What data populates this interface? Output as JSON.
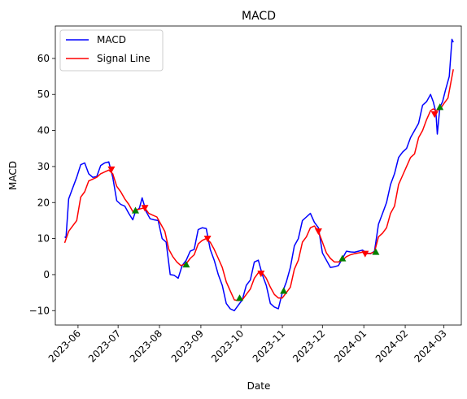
{
  "chart_data": {
    "type": "line",
    "title": "MACD",
    "xlabel": "Date",
    "ylabel": "MACD",
    "xlim": [
      "2023-05-15",
      "2024-03-14"
    ],
    "ylim": [
      -14,
      69
    ],
    "x_ticks": [
      "2023-06-01",
      "2023-07-01",
      "2023-08-01",
      "2023-09-01",
      "2023-10-01",
      "2023-11-01",
      "2023-12-01",
      "2024-01-01",
      "2024-02-01",
      "2024-03-01"
    ],
    "x_tick_labels": [
      "2023-06",
      "2023-07",
      "2023-08",
      "2023-09",
      "2023-10",
      "2023-11",
      "2023-12",
      "2024-01",
      "2024-02",
      "2024-03"
    ],
    "y_ticks": [
      -10,
      0,
      10,
      20,
      30,
      40,
      50,
      60
    ],
    "y_tick_labels": [
      "−10",
      "0",
      "10",
      "20",
      "30",
      "40",
      "50",
      "60"
    ],
    "grid": false,
    "legend_position": "top-left",
    "legend": [
      "MACD",
      "Signal Line"
    ],
    "series": [
      {
        "name": "MACD",
        "color": "#0000ff",
        "points": [
          [
            "2023-05-22",
            10.5
          ],
          [
            "2023-05-23",
            10.2
          ],
          [
            "2023-05-25",
            21
          ],
          [
            "2023-05-28",
            24
          ],
          [
            "2023-05-31",
            27
          ],
          [
            "2023-06-03",
            30.5
          ],
          [
            "2023-06-06",
            31
          ],
          [
            "2023-06-09",
            28
          ],
          [
            "2023-06-12",
            27
          ],
          [
            "2023-06-15",
            27.2
          ],
          [
            "2023-06-18",
            30.3
          ],
          [
            "2023-06-21",
            31
          ],
          [
            "2023-06-24",
            31.3
          ],
          [
            "2023-06-27",
            27
          ],
          [
            "2023-06-30",
            20.5
          ],
          [
            "2023-07-03",
            19.5
          ],
          [
            "2023-07-06",
            19
          ],
          [
            "2023-07-09",
            17
          ],
          [
            "2023-07-12",
            15.2
          ],
          [
            "2023-07-14",
            17.5
          ],
          [
            "2023-07-17",
            18.5
          ],
          [
            "2023-07-19",
            21.3
          ],
          [
            "2023-07-22",
            17.5
          ],
          [
            "2023-07-25",
            15.5
          ],
          [
            "2023-07-28",
            15.2
          ],
          [
            "2023-07-31",
            15
          ],
          [
            "2023-08-03",
            10
          ],
          [
            "2023-08-06",
            9
          ],
          [
            "2023-08-09",
            0
          ],
          [
            "2023-08-12",
            -0.2
          ],
          [
            "2023-08-15",
            -1
          ],
          [
            "2023-08-18",
            2.5
          ],
          [
            "2023-08-21",
            4
          ],
          [
            "2023-08-24",
            6.5
          ],
          [
            "2023-08-27",
            7
          ],
          [
            "2023-08-30",
            12.5
          ],
          [
            "2023-09-02",
            13
          ],
          [
            "2023-09-05",
            12.8
          ],
          [
            "2023-09-08",
            7
          ],
          [
            "2023-09-11",
            4
          ],
          [
            "2023-09-14",
            0
          ],
          [
            "2023-09-17",
            -3
          ],
          [
            "2023-09-20",
            -8
          ],
          [
            "2023-09-23",
            -9.5
          ],
          [
            "2023-09-26",
            -10
          ],
          [
            "2023-09-29",
            -8.5
          ],
          [
            "2023-10-02",
            -7
          ],
          [
            "2023-10-05",
            -3
          ],
          [
            "2023-10-08",
            -1.5
          ],
          [
            "2023-10-11",
            3.5
          ],
          [
            "2023-10-14",
            4
          ],
          [
            "2023-10-17",
            0
          ],
          [
            "2023-10-20",
            -3
          ],
          [
            "2023-10-23",
            -8
          ],
          [
            "2023-10-26",
            -9
          ],
          [
            "2023-10-29",
            -9.5
          ],
          [
            "2023-11-01",
            -5
          ],
          [
            "2023-11-04",
            -2
          ],
          [
            "2023-11-07",
            2
          ],
          [
            "2023-11-10",
            8
          ],
          [
            "2023-11-13",
            10
          ],
          [
            "2023-11-16",
            15
          ],
          [
            "2023-11-19",
            16
          ],
          [
            "2023-11-22",
            17
          ],
          [
            "2023-11-25",
            14.5
          ],
          [
            "2023-11-28",
            13
          ],
          [
            "2023-12-01",
            6
          ],
          [
            "2023-12-04",
            4
          ],
          [
            "2023-12-07",
            2
          ],
          [
            "2023-12-10",
            2.2
          ],
          [
            "2023-12-13",
            2.5
          ],
          [
            "2023-12-16",
            4.5
          ],
          [
            "2023-12-19",
            6.5
          ],
          [
            "2023-12-22",
            6.3
          ],
          [
            "2023-12-25",
            6.2
          ],
          [
            "2023-12-28",
            6.5
          ],
          [
            "2023-12-31",
            6.8
          ],
          [
            "2024-01-03",
            6
          ],
          [
            "2024-01-06",
            5.8
          ],
          [
            "2024-01-09",
            6.5
          ],
          [
            "2024-01-12",
            14
          ],
          [
            "2024-01-15",
            17
          ],
          [
            "2024-01-18",
            20
          ],
          [
            "2024-01-21",
            25
          ],
          [
            "2024-01-24",
            28
          ],
          [
            "2024-01-27",
            32.5
          ],
          [
            "2024-01-30",
            34
          ],
          [
            "2024-02-02",
            35
          ],
          [
            "2024-02-05",
            38
          ],
          [
            "2024-02-08",
            40
          ],
          [
            "2024-02-11",
            42
          ],
          [
            "2024-02-14",
            47
          ],
          [
            "2024-02-17",
            48
          ],
          [
            "2024-02-20",
            50
          ],
          [
            "2024-02-22",
            48
          ],
          [
            "2024-02-24",
            45
          ],
          [
            "2024-02-25",
            39
          ],
          [
            "2024-02-27",
            46.5
          ],
          [
            "2024-02-29",
            48
          ],
          [
            "2024-03-02",
            51
          ],
          [
            "2024-03-05",
            55
          ],
          [
            "2024-03-07",
            65.3
          ],
          [
            "2024-03-08",
            64.5
          ]
        ]
      },
      {
        "name": "Signal Line",
        "color": "#ff0000",
        "points": [
          [
            "2023-05-22",
            8.8
          ],
          [
            "2023-05-25",
            12
          ],
          [
            "2023-05-28",
            13.5
          ],
          [
            "2023-05-31",
            15
          ],
          [
            "2023-06-03",
            21.5
          ],
          [
            "2023-06-06",
            23
          ],
          [
            "2023-06-09",
            26
          ],
          [
            "2023-06-12",
            26.5
          ],
          [
            "2023-06-15",
            27
          ],
          [
            "2023-06-18",
            28
          ],
          [
            "2023-06-21",
            28.5
          ],
          [
            "2023-06-24",
            29
          ],
          [
            "2023-06-27",
            28
          ],
          [
            "2023-06-30",
            24.5
          ],
          [
            "2023-07-03",
            23
          ],
          [
            "2023-07-06",
            21
          ],
          [
            "2023-07-09",
            19.5
          ],
          [
            "2023-07-12",
            17.5
          ],
          [
            "2023-07-15",
            18
          ],
          [
            "2023-07-18",
            18.3
          ],
          [
            "2023-07-21",
            18.5
          ],
          [
            "2023-07-24",
            17
          ],
          [
            "2023-07-27",
            16.5
          ],
          [
            "2023-07-30",
            16
          ],
          [
            "2023-08-02",
            14
          ],
          [
            "2023-08-05",
            12
          ],
          [
            "2023-08-08",
            7
          ],
          [
            "2023-08-11",
            5
          ],
          [
            "2023-08-14",
            3.5
          ],
          [
            "2023-08-17",
            2.5
          ],
          [
            "2023-08-21",
            3
          ],
          [
            "2023-08-24",
            4.5
          ],
          [
            "2023-08-27",
            5.5
          ],
          [
            "2023-08-30",
            8.5
          ],
          [
            "2023-09-02",
            9.5
          ],
          [
            "2023-09-05",
            10
          ],
          [
            "2023-09-08",
            9
          ],
          [
            "2023-09-11",
            7
          ],
          [
            "2023-09-14",
            4.5
          ],
          [
            "2023-09-17",
            2
          ],
          [
            "2023-09-20",
            -2
          ],
          [
            "2023-09-23",
            -4.5
          ],
          [
            "2023-09-26",
            -7
          ],
          [
            "2023-09-29",
            -7.2
          ],
          [
            "2023-10-02",
            -7
          ],
          [
            "2023-10-05",
            -5.5
          ],
          [
            "2023-10-08",
            -4
          ],
          [
            "2023-10-11",
            -1
          ],
          [
            "2023-10-14",
            0.5
          ],
          [
            "2023-10-17",
            0.5
          ],
          [
            "2023-10-20",
            -1
          ],
          [
            "2023-10-23",
            -3.5
          ],
          [
            "2023-10-26",
            -5.5
          ],
          [
            "2023-10-29",
            -6.5
          ],
          [
            "2023-11-01",
            -6.5
          ],
          [
            "2023-11-04",
            -5
          ],
          [
            "2023-11-07",
            -3.5
          ],
          [
            "2023-11-10",
            1.5
          ],
          [
            "2023-11-13",
            4
          ],
          [
            "2023-11-16",
            9
          ],
          [
            "2023-11-19",
            10.5
          ],
          [
            "2023-11-22",
            13
          ],
          [
            "2023-11-25",
            13.5
          ],
          [
            "2023-11-28",
            12
          ],
          [
            "2023-12-01",
            9
          ],
          [
            "2023-12-04",
            6
          ],
          [
            "2023-12-07",
            4.5
          ],
          [
            "2023-12-10",
            3.5
          ],
          [
            "2023-12-13",
            3.5
          ],
          [
            "2023-12-16",
            4
          ],
          [
            "2023-12-19",
            5
          ],
          [
            "2023-12-22",
            5.5
          ],
          [
            "2023-12-25",
            5.8
          ],
          [
            "2023-12-28",
            6
          ],
          [
            "2023-12-31",
            6.2
          ],
          [
            "2024-01-03",
            5.8
          ],
          [
            "2024-01-06",
            5.9
          ],
          [
            "2024-01-09",
            6.3
          ],
          [
            "2024-01-12",
            10.5
          ],
          [
            "2024-01-15",
            11.5
          ],
          [
            "2024-01-18",
            13
          ],
          [
            "2024-01-21",
            17
          ],
          [
            "2024-01-24",
            19
          ],
          [
            "2024-01-27",
            25
          ],
          [
            "2024-01-30",
            27.5
          ],
          [
            "2024-02-02",
            30
          ],
          [
            "2024-02-05",
            32.5
          ],
          [
            "2024-02-08",
            33.5
          ],
          [
            "2024-02-11",
            38
          ],
          [
            "2024-02-14",
            40
          ],
          [
            "2024-02-17",
            43
          ],
          [
            "2024-02-20",
            45.5
          ],
          [
            "2024-02-22",
            46
          ],
          [
            "2024-02-24",
            45.5
          ],
          [
            "2024-02-27",
            45.8
          ],
          [
            "2024-03-01",
            47.5
          ],
          [
            "2024-03-04",
            49
          ],
          [
            "2024-03-06",
            53
          ],
          [
            "2024-03-08",
            57
          ]
        ]
      }
    ],
    "markers": [
      {
        "x": "2023-06-26",
        "y": 29.2,
        "kind": "sell",
        "color": "#ff0000"
      },
      {
        "x": "2023-07-14",
        "y": 17.8,
        "kind": "buy",
        "color": "#008000"
      },
      {
        "x": "2023-07-21",
        "y": 18.5,
        "kind": "sell",
        "color": "#ff0000"
      },
      {
        "x": "2023-08-21",
        "y": 2.8,
        "kind": "buy",
        "color": "#008000"
      },
      {
        "x": "2023-09-06",
        "y": 10,
        "kind": "sell",
        "color": "#ff0000"
      },
      {
        "x": "2023-09-30",
        "y": -6.5,
        "kind": "buy",
        "color": "#008000"
      },
      {
        "x": "2023-10-16",
        "y": 0.3,
        "kind": "sell",
        "color": "#ff0000"
      },
      {
        "x": "2023-11-02",
        "y": -4.5,
        "kind": "buy",
        "color": "#008000"
      },
      {
        "x": "2023-11-28",
        "y": 12,
        "kind": "sell",
        "color": "#ff0000"
      },
      {
        "x": "2023-12-16",
        "y": 4.5,
        "kind": "buy",
        "color": "#008000"
      },
      {
        "x": "2024-01-02",
        "y": 5.8,
        "kind": "sell",
        "color": "#ff0000"
      },
      {
        "x": "2024-01-10",
        "y": 6.3,
        "kind": "buy",
        "color": "#008000"
      },
      {
        "x": "2024-02-23",
        "y": 44.5,
        "kind": "sell",
        "color": "#ff0000"
      },
      {
        "x": "2024-02-27",
        "y": 46.5,
        "kind": "buy",
        "color": "#008000"
      }
    ]
  }
}
